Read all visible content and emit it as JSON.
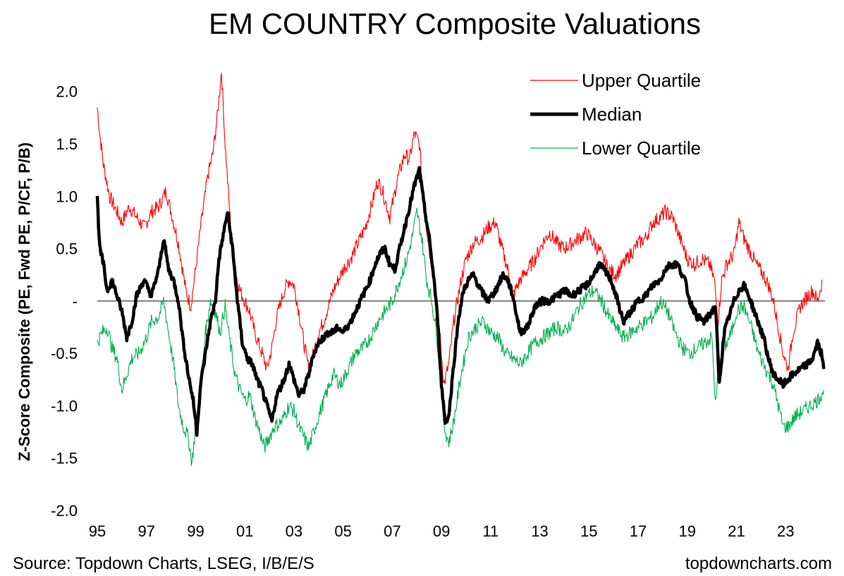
{
  "colors": {
    "upper": "#ff0000",
    "median": "#000000",
    "lower": "#00b050",
    "zero_line": "#808080"
  },
  "chart_data": {
    "type": "line",
    "title": "EM COUNTRY Composite Valuations",
    "ylabel": "Z-Score Composite (PE, Fwd PE, P/CF, P/B)",
    "xlabel": "",
    "ylim": [
      -2.0,
      2.2
    ],
    "xlim": [
      1995,
      2024.6
    ],
    "yticks": [
      {
        "value": 2.0,
        "label": "2.0"
      },
      {
        "value": 1.5,
        "label": "1.5"
      },
      {
        "value": 1.0,
        "label": "1.0"
      },
      {
        "value": 0.5,
        "label": "0.5"
      },
      {
        "value": 0.0,
        "label": "-"
      },
      {
        "value": -0.5,
        "label": "-0.5"
      },
      {
        "value": -1.0,
        "label": "-1.0"
      },
      {
        "value": -1.5,
        "label": "-1.5"
      },
      {
        "value": -2.0,
        "label": "-2.0"
      }
    ],
    "xticks": [
      {
        "value": 1995,
        "label": "95"
      },
      {
        "value": 1997,
        "label": "97"
      },
      {
        "value": 1999,
        "label": "99"
      },
      {
        "value": 2001,
        "label": "01"
      },
      {
        "value": 2003,
        "label": "03"
      },
      {
        "value": 2005,
        "label": "05"
      },
      {
        "value": 2007,
        "label": "07"
      },
      {
        "value": 2009,
        "label": "09"
      },
      {
        "value": 2011,
        "label": "11"
      },
      {
        "value": 2013,
        "label": "13"
      },
      {
        "value": 2015,
        "label": "15"
      },
      {
        "value": 2017,
        "label": "17"
      },
      {
        "value": 2019,
        "label": "19"
      },
      {
        "value": 2021,
        "label": "21"
      },
      {
        "value": 2023,
        "label": "23"
      }
    ],
    "legend_position": "top-right",
    "series": [
      {
        "name": "Upper Quartile",
        "x": [
          1995.0,
          1995.1,
          1995.25,
          1995.5,
          1995.8,
          1996.0,
          1996.3,
          1996.6,
          1996.9,
          1997.2,
          1997.5,
          1997.8,
          1998.0,
          1998.3,
          1998.6,
          1998.8,
          1999.0,
          1999.2,
          1999.5,
          1999.7,
          1999.9,
          2000.05,
          2000.2,
          2000.4,
          2000.6,
          2000.8,
          2001.0,
          2001.2,
          2001.4,
          2001.7,
          2001.9,
          2002.1,
          2002.3,
          2002.6,
          2002.8,
          2003.0,
          2003.2,
          2003.4,
          2003.6,
          2003.8,
          2004.0,
          2004.2,
          2004.4,
          2004.6,
          2004.8,
          2005.0,
          2005.3,
          2005.6,
          2005.9,
          2006.2,
          2006.4,
          2006.6,
          2006.9,
          2007.2,
          2007.5,
          2007.7,
          2007.9,
          2008.1,
          2008.3,
          2008.5,
          2008.7,
          2008.85,
          2009.0,
          2009.1,
          2009.3,
          2009.5,
          2009.8,
          2010.0,
          2010.3,
          2010.6,
          2010.9,
          2011.2,
          2011.4,
          2011.7,
          2011.9,
          2012.2,
          2012.5,
          2012.8,
          2013.1,
          2013.4,
          2013.7,
          2014.0,
          2014.3,
          2014.6,
          2014.9,
          2015.2,
          2015.5,
          2015.8,
          2016.1,
          2016.4,
          2016.7,
          2017.0,
          2017.3,
          2017.6,
          2017.9,
          2018.1,
          2018.4,
          2018.7,
          2019.0,
          2019.3,
          2019.6,
          2019.9,
          2020.1,
          2020.25,
          2020.4,
          2020.6,
          2020.9,
          2021.1,
          2021.3,
          2021.5,
          2021.8,
          2022.1,
          2022.3,
          2022.5,
          2022.7,
          2022.9,
          2023.1,
          2023.3,
          2023.6,
          2023.9,
          2024.1,
          2024.3,
          2024.5
        ],
        "values": [
          1.85,
          1.6,
          1.3,
          1.0,
          0.85,
          0.75,
          0.9,
          0.8,
          0.7,
          0.85,
          0.9,
          1.05,
          0.85,
          0.55,
          0.1,
          -0.05,
          0.3,
          0.7,
          1.2,
          1.4,
          1.8,
          2.2,
          1.5,
          0.8,
          0.3,
          0.1,
          0.0,
          -0.1,
          -0.3,
          -0.5,
          -0.65,
          -0.45,
          -0.15,
          0.1,
          0.2,
          0.15,
          -0.1,
          -0.4,
          -0.65,
          -0.5,
          -0.3,
          -0.2,
          -0.05,
          0.1,
          0.2,
          0.3,
          0.4,
          0.55,
          0.7,
          0.95,
          1.15,
          1.05,
          0.8,
          1.15,
          1.4,
          1.35,
          1.6,
          1.5,
          0.9,
          0.5,
          0.2,
          -0.1,
          -0.5,
          -0.8,
          -0.6,
          -0.2,
          0.2,
          0.4,
          0.55,
          0.6,
          0.7,
          0.75,
          0.55,
          0.3,
          0.05,
          0.2,
          0.3,
          0.4,
          0.55,
          0.65,
          0.55,
          0.5,
          0.55,
          0.6,
          0.65,
          0.55,
          0.45,
          0.3,
          0.25,
          0.35,
          0.45,
          0.55,
          0.6,
          0.75,
          0.8,
          0.85,
          0.8,
          0.6,
          0.4,
          0.35,
          0.4,
          0.35,
          0.2,
          -0.2,
          0.2,
          0.35,
          0.45,
          0.75,
          0.6,
          0.5,
          0.35,
          0.25,
          0.15,
          0.0,
          -0.25,
          -0.5,
          -0.65,
          -0.3,
          -0.05,
          0.05,
          0.1,
          0.0,
          0.2
        ]
      },
      {
        "name": "Median",
        "x": [
          1995.0,
          1995.1,
          1995.25,
          1995.4,
          1995.6,
          1995.8,
          1996.0,
          1996.2,
          1996.4,
          1996.6,
          1996.9,
          1997.2,
          1997.5,
          1997.7,
          1997.9,
          1998.1,
          1998.3,
          1998.5,
          1998.7,
          1998.9,
          1999.05,
          1999.2,
          1999.4,
          1999.6,
          1999.8,
          1999.95,
          2000.1,
          2000.3,
          2000.5,
          2000.7,
          2000.9,
          2001.1,
          2001.3,
          2001.5,
          2001.7,
          2001.9,
          2002.1,
          2002.3,
          2002.6,
          2002.8,
          2003.0,
          2003.2,
          2003.4,
          2003.6,
          2003.8,
          2004.0,
          2004.2,
          2004.4,
          2004.6,
          2004.8,
          2005.0,
          2005.3,
          2005.6,
          2005.9,
          2006.1,
          2006.3,
          2006.5,
          2006.7,
          2006.9,
          2007.1,
          2007.3,
          2007.5,
          2007.7,
          2007.9,
          2008.1,
          2008.3,
          2008.5,
          2008.7,
          2008.85,
          2009.0,
          2009.15,
          2009.3,
          2009.5,
          2009.7,
          2009.9,
          2010.1,
          2010.3,
          2010.6,
          2010.9,
          2011.2,
          2011.5,
          2011.7,
          2011.9,
          2012.2,
          2012.5,
          2012.8,
          2013.1,
          2013.4,
          2013.7,
          2014.0,
          2014.3,
          2014.6,
          2014.9,
          2015.2,
          2015.4,
          2015.6,
          2015.9,
          2016.1,
          2016.4,
          2016.7,
          2017.0,
          2017.3,
          2017.6,
          2017.9,
          2018.1,
          2018.3,
          2018.6,
          2018.9,
          2019.1,
          2019.4,
          2019.7,
          2020.0,
          2020.15,
          2020.3,
          2020.5,
          2020.7,
          2020.9,
          2021.1,
          2021.3,
          2021.5,
          2021.8,
          2022.1,
          2022.3,
          2022.5,
          2022.7,
          2022.9,
          2023.1,
          2023.3,
          2023.6,
          2023.9,
          2024.1,
          2024.3,
          2024.45,
          2024.55
        ],
        "values": [
          0.98,
          0.5,
          0.35,
          0.1,
          0.2,
          0.05,
          -0.1,
          -0.35,
          -0.2,
          0.05,
          0.2,
          0.05,
          0.3,
          0.6,
          0.3,
          0.2,
          0.0,
          -0.4,
          -0.7,
          -0.95,
          -1.25,
          -0.8,
          -0.5,
          -0.2,
          0.0,
          0.4,
          0.6,
          0.85,
          0.5,
          0.0,
          -0.4,
          -0.55,
          -0.6,
          -0.75,
          -0.85,
          -1.0,
          -1.15,
          -0.9,
          -0.75,
          -0.6,
          -0.75,
          -0.9,
          -0.85,
          -0.7,
          -0.5,
          -0.4,
          -0.35,
          -0.3,
          -0.3,
          -0.25,
          -0.3,
          -0.2,
          -0.05,
          0.1,
          0.2,
          0.35,
          0.45,
          0.5,
          0.35,
          0.3,
          0.5,
          0.7,
          0.9,
          1.1,
          1.25,
          0.9,
          0.6,
          0.2,
          -0.2,
          -0.8,
          -1.15,
          -1.1,
          -0.6,
          -0.15,
          0.1,
          0.2,
          0.25,
          0.1,
          0.0,
          0.1,
          0.25,
          0.2,
          0.05,
          -0.3,
          -0.25,
          -0.05,
          0.0,
          0.0,
          0.05,
          0.1,
          0.05,
          0.1,
          0.15,
          0.25,
          0.35,
          0.3,
          0.2,
          0.05,
          -0.2,
          -0.1,
          0.0,
          0.05,
          0.15,
          0.2,
          0.3,
          0.35,
          0.35,
          0.2,
          0.0,
          -0.15,
          -0.2,
          -0.1,
          -0.05,
          -0.8,
          -0.3,
          -0.15,
          0.0,
          0.1,
          0.15,
          0.05,
          -0.15,
          -0.35,
          -0.55,
          -0.7,
          -0.75,
          -0.8,
          -0.75,
          -0.7,
          -0.65,
          -0.6,
          -0.55,
          -0.4,
          -0.5,
          -0.65
        ]
      },
      {
        "name": "Lower Quartile",
        "x": [
          1995.0,
          1995.2,
          1995.4,
          1995.6,
          1995.8,
          1996.0,
          1996.2,
          1996.4,
          1996.7,
          1997.0,
          1997.2,
          1997.5,
          1997.7,
          1997.9,
          1998.1,
          1998.3,
          1998.5,
          1998.7,
          1998.85,
          1999.0,
          1999.2,
          1999.4,
          1999.6,
          1999.8,
          2000.0,
          2000.2,
          2000.4,
          2000.6,
          2000.8,
          2001.0,
          2001.2,
          2001.4,
          2001.6,
          2001.8,
          2002.0,
          2002.2,
          2002.5,
          2002.8,
          2003.0,
          2003.2,
          2003.4,
          2003.6,
          2003.8,
          2004.0,
          2004.3,
          2004.6,
          2004.9,
          2005.2,
          2005.5,
          2005.8,
          2006.1,
          2006.4,
          2006.7,
          2007.0,
          2007.3,
          2007.6,
          2007.8,
          2008.0,
          2008.2,
          2008.4,
          2008.6,
          2008.8,
          2008.95,
          2009.1,
          2009.3,
          2009.5,
          2009.8,
          2010.1,
          2010.4,
          2010.7,
          2011.0,
          2011.3,
          2011.6,
          2011.9,
          2012.2,
          2012.5,
          2012.8,
          2013.1,
          2013.4,
          2013.7,
          2014.0,
          2014.3,
          2014.6,
          2014.9,
          2015.2,
          2015.5,
          2015.8,
          2016.1,
          2016.4,
          2016.7,
          2017.0,
          2017.3,
          2017.6,
          2017.9,
          2018.2,
          2018.5,
          2018.8,
          2019.1,
          2019.4,
          2019.7,
          2020.0,
          2020.15,
          2020.3,
          2020.5,
          2020.8,
          2021.0,
          2021.3,
          2021.6,
          2021.9,
          2022.2,
          2022.5,
          2022.7,
          2022.9,
          2023.1,
          2023.4,
          2023.7,
          2024.0,
          2024.3,
          2024.55
        ],
        "values": [
          -0.4,
          -0.3,
          -0.25,
          -0.45,
          -0.55,
          -0.85,
          -0.7,
          -0.55,
          -0.5,
          -0.35,
          -0.2,
          -0.15,
          0.0,
          -0.3,
          -0.6,
          -1.0,
          -1.2,
          -1.3,
          -1.55,
          -1.2,
          -0.8,
          -0.3,
          0.0,
          -0.1,
          -0.3,
          -0.05,
          -0.4,
          -0.7,
          -0.85,
          -0.95,
          -0.9,
          -1.1,
          -1.25,
          -1.4,
          -1.3,
          -1.2,
          -1.15,
          -1.0,
          -1.05,
          -1.2,
          -1.3,
          -1.4,
          -1.25,
          -1.1,
          -0.9,
          -0.7,
          -0.8,
          -0.65,
          -0.5,
          -0.45,
          -0.35,
          -0.2,
          -0.1,
          0.0,
          0.2,
          0.4,
          0.6,
          0.85,
          0.6,
          0.2,
          0.0,
          -0.3,
          -0.7,
          -1.2,
          -1.35,
          -1.15,
          -0.7,
          -0.35,
          -0.25,
          -0.2,
          -0.3,
          -0.35,
          -0.5,
          -0.55,
          -0.6,
          -0.5,
          -0.4,
          -0.35,
          -0.3,
          -0.25,
          -0.3,
          -0.2,
          -0.05,
          0.05,
          0.1,
          0.0,
          -0.15,
          -0.25,
          -0.35,
          -0.3,
          -0.25,
          -0.2,
          -0.15,
          0.0,
          -0.1,
          -0.3,
          -0.45,
          -0.5,
          -0.45,
          -0.4,
          -0.35,
          -1.0,
          -0.55,
          -0.45,
          -0.3,
          -0.1,
          -0.05,
          -0.25,
          -0.5,
          -0.65,
          -0.8,
          -1.0,
          -1.2,
          -1.2,
          -1.1,
          -1.05,
          -1.0,
          -0.95,
          -0.85
        ]
      }
    ]
  },
  "footer": {
    "source": "Source: Topdown Charts, LSEG, I/B/E/S",
    "brand": "topdowncharts.com"
  }
}
